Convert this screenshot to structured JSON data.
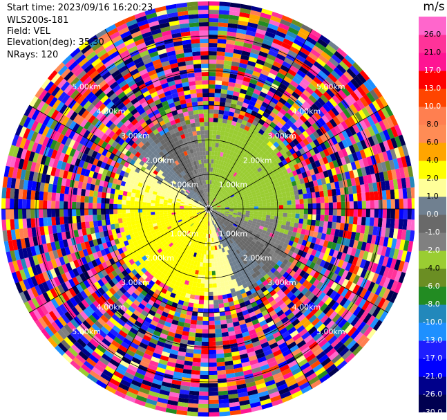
{
  "header": {
    "start_time": "Start time: 2023/09/16 16:20:23",
    "instrument": "WLS200s-181",
    "field": "Field: VEL",
    "elevation": "Elevation(deg): 35.30",
    "nrays": "NRays: 120"
  },
  "chart_data": {
    "type": "heatmap",
    "projection": "polar-ppi",
    "field": "VEL",
    "units": "m/s",
    "n_rays": 120,
    "max_range_km": 6.0,
    "range_rings_km": [
      1,
      2,
      3,
      4,
      5
    ],
    "ring_labels": [
      "1.00km",
      "2.00km",
      "3.00km",
      "4.00km",
      "5.00km"
    ],
    "azimuth_lines_deg": [
      0,
      30,
      60,
      90,
      120,
      150,
      180,
      210,
      240,
      270,
      300,
      330
    ],
    "color_scale": {
      "boundaries": [
        -30,
        -26,
        -21,
        -17,
        -13,
        -10,
        -8,
        -6,
        -4,
        -2,
        -1,
        0,
        1,
        2,
        4,
        6,
        8,
        10,
        13,
        17,
        21,
        26,
        30
      ],
      "tick_labels": [
        "26.0",
        "21.0",
        "17.0",
        "13.0",
        "10.0",
        "8.0",
        "6.0",
        "4.0",
        "2.0",
        "1.0",
        "0.0",
        "-1.0",
        "-2.0",
        "-4.0",
        "-6.0",
        "-8.0",
        "-10.0",
        "-13.0",
        "-17.0",
        "-21.0",
        "-26.0",
        "-30.0"
      ],
      "colors": [
        "#000050",
        "#00008b",
        "#0000ff",
        "#1e1eff",
        "#1e90ff",
        "#2288bb",
        "#228b22",
        "#6b8e23",
        "#9acd32",
        "#808080",
        "#696969",
        "#708090",
        "#ffff99",
        "#ffff00",
        "#ffa500",
        "#ff8c55",
        "#ff7f50",
        "#ff4500",
        "#ff0000",
        "#ff1493",
        "#ff3399",
        "#ff66cc"
      ]
    },
    "pattern": {
      "clean_range_km": 2.5,
      "approaching_sector_deg": [
        60,
        200
      ],
      "receding_sector_deg": [
        220,
        350
      ],
      "noise_beyond_km": 2.8
    }
  }
}
